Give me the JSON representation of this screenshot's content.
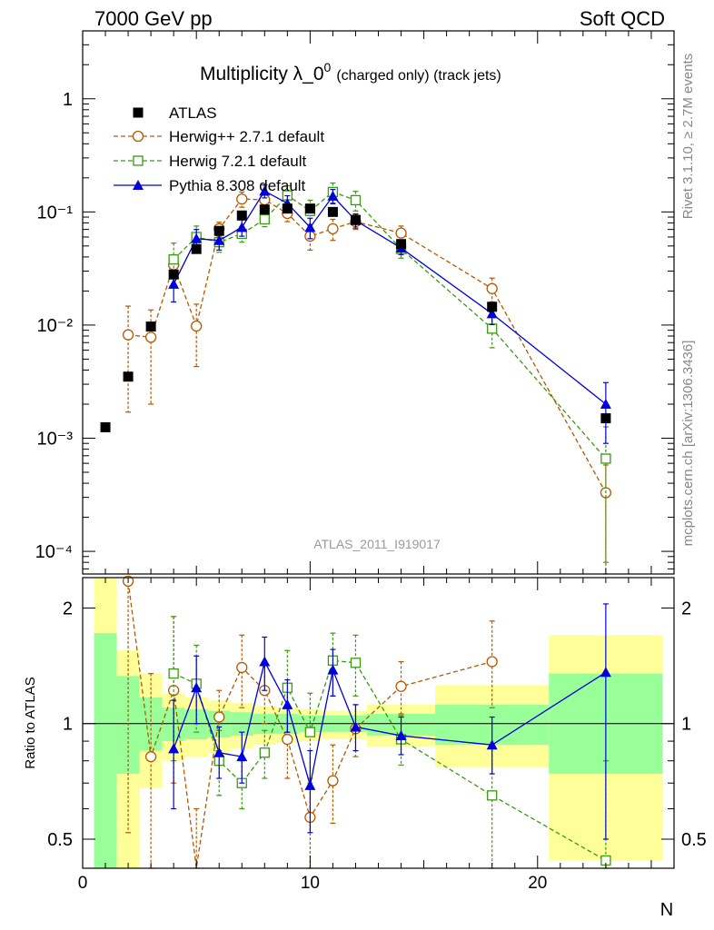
{
  "header": {
    "left": "7000 GeV pp",
    "right": "Soft QCD"
  },
  "side_labels": {
    "top": "Rivet 3.1.10, ≥ 2.7M events",
    "bottom": "mcplots.cern.ch [arXiv:1306.3436]"
  },
  "chart_data": {
    "type": "scatter",
    "title_main": "Multiplicity λ_0",
    "title_sup": "0",
    "title_small": "(charged only) (track jets)",
    "watermark": "ATLAS_2011_I919017",
    "xlabel": "N",
    "ylabel_ratio": "Ratio to ATLAS",
    "x_ticks": [
      "0",
      "10",
      "20"
    ],
    "y_ticks_main": [
      "1",
      "10⁻¹",
      "10⁻²",
      "10⁻³",
      "10⁻⁴"
    ],
    "y_ticks_ratio": [
      "2",
      "1",
      "0.5"
    ],
    "xlim": [
      0,
      26
    ],
    "ylim_main_log10": [
      -4.2,
      0.6
    ],
    "ylim_ratio": [
      0.42,
      2.4
    ],
    "legend_position": "top-left",
    "series": [
      {
        "name": "ATLAS",
        "color": "#000000",
        "marker": "square-filled",
        "x": [
          1,
          2,
          3,
          4,
          5,
          6,
          7,
          8,
          9,
          10,
          11,
          12,
          14,
          18,
          23
        ],
        "y": [
          0.00125,
          0.0035,
          0.0097,
          0.028,
          0.047,
          0.068,
          0.093,
          0.105,
          0.107,
          0.107,
          0.1,
          0.085,
          0.052,
          0.0145,
          0.0015
        ]
      },
      {
        "name": "Herwig++ 2.7.1 default",
        "color": "#b35900",
        "marker": "circle-open",
        "dash": "5,3",
        "x": [
          2,
          3,
          4,
          5,
          6,
          7,
          8,
          9,
          10,
          11,
          12,
          14,
          18,
          23
        ],
        "y": [
          0.0082,
          0.0078,
          0.034,
          0.0098,
          0.071,
          0.13,
          0.128,
          0.097,
          0.061,
          0.071,
          0.082,
          0.065,
          0.021,
          0.00033
        ],
        "yerr": [
          0.0065,
          0.0058,
          0.006,
          0.0055,
          0.01,
          0.02,
          0.02,
          0.015,
          0.015,
          0.015,
          0.012,
          0.01,
          0.005,
          0.00025
        ]
      },
      {
        "name": "Herwig 7.2.1 default",
        "color": "#3a9a10",
        "marker": "square-open",
        "dash": "5,3",
        "x": [
          4,
          5,
          6,
          7,
          8,
          9,
          10,
          11,
          12,
          14,
          18,
          23
        ],
        "y": [
          0.038,
          0.06,
          0.054,
          0.064,
          0.086,
          0.14,
          0.102,
          0.15,
          0.127,
          0.047,
          0.0093,
          0.00066
        ],
        "yerr": [
          0.015,
          0.015,
          0.01,
          0.01,
          0.012,
          0.03,
          0.025,
          0.03,
          0.025,
          0.008,
          0.003,
          0.0006
        ]
      },
      {
        "name": "Pythia 8.308 default",
        "color": "#0000dd",
        "marker": "triangle-filled",
        "x": [
          4,
          5,
          6,
          7,
          8,
          9,
          10,
          11,
          12,
          14,
          18,
          23
        ],
        "y": [
          0.023,
          0.058,
          0.056,
          0.073,
          0.153,
          0.119,
          0.073,
          0.138,
          0.084,
          0.048,
          0.0126,
          0.002
        ],
        "yerr": [
          0.007,
          0.012,
          0.01,
          0.012,
          0.02,
          0.02,
          0.015,
          0.02,
          0.012,
          0.006,
          0.0025,
          0.0011
        ]
      }
    ],
    "ratio_series": [
      {
        "name": "Herwig++ 2.7.1 default",
        "x": [
          2,
          3,
          4,
          5,
          6,
          7,
          8,
          9,
          10,
          11,
          12,
          14,
          18
        ],
        "y": [
          2.35,
          0.82,
          1.22,
          0.2,
          1.04,
          1.4,
          1.22,
          0.91,
          0.57,
          0.71,
          0.97,
          1.25,
          1.45
        ],
        "ylo": [
          0.52,
          0.3,
          0.7,
          0.1,
          0.85,
          1.1,
          1.0,
          0.72,
          0.4,
          0.55,
          0.82,
          1.06,
          1.1
        ],
        "yhi": [
          2.4,
          1.35,
          1.9,
          0.6,
          1.22,
          1.7,
          1.45,
          1.1,
          0.72,
          0.88,
          1.12,
          1.45,
          1.85
        ]
      },
      {
        "name": "Herwig 7.2.1 default",
        "x": [
          4,
          5,
          6,
          7,
          8,
          9,
          10,
          11,
          12,
          14,
          18,
          23
        ],
        "y": [
          1.35,
          1.27,
          0.8,
          0.7,
          0.84,
          1.24,
          0.95,
          1.46,
          1.44,
          0.91,
          0.65,
          0.44
        ],
        "ylo": [
          0.8,
          0.95,
          0.65,
          0.6,
          0.72,
          0.95,
          0.7,
          1.18,
          1.18,
          0.78,
          0.42,
          0.1
        ],
        "yhi": [
          1.9,
          1.6,
          0.96,
          0.8,
          0.96,
          1.55,
          1.2,
          1.72,
          1.7,
          1.05,
          0.88,
          0.8
        ]
      },
      {
        "name": "Pythia 8.308 default",
        "x": [
          4,
          5,
          6,
          7,
          8,
          9,
          10,
          11,
          12,
          14,
          18,
          23
        ],
        "y": [
          0.86,
          1.24,
          0.84,
          0.82,
          1.45,
          1.12,
          0.69,
          1.38,
          0.98,
          0.93,
          0.88,
          1.36
        ],
        "ylo": [
          0.6,
          1.0,
          0.72,
          0.7,
          1.22,
          0.95,
          0.52,
          1.18,
          0.85,
          0.83,
          0.74,
          0.5
        ],
        "yhi": [
          1.15,
          1.5,
          0.98,
          0.95,
          1.68,
          1.3,
          0.85,
          1.56,
          1.12,
          1.04,
          1.04,
          2.05
        ]
      }
    ],
    "ratio_bands": [
      {
        "xlo": 0.5,
        "xhi": 1.5,
        "g_lo": 0.33,
        "g_hi": 1.72,
        "y_lo": 0.3,
        "y_hi": 2.4
      },
      {
        "xlo": 1.5,
        "xhi": 2.5,
        "g_lo": 0.74,
        "g_hi": 1.33,
        "y_lo": 0.42,
        "y_hi": 1.55
      },
      {
        "xlo": 2.5,
        "xhi": 3.5,
        "g_lo": 0.85,
        "g_hi": 1.17,
        "y_lo": 0.68,
        "y_hi": 1.35
      },
      {
        "xlo": 3.5,
        "xhi": 4.5,
        "g_lo": 0.9,
        "g_hi": 1.1,
        "y_lo": 0.8,
        "y_hi": 1.2
      },
      {
        "xlo": 4.5,
        "xhi": 5.5,
        "g_lo": 0.91,
        "g_hi": 1.09,
        "y_lo": 0.82,
        "y_hi": 1.17
      },
      {
        "xlo": 5.5,
        "xhi": 6.5,
        "g_lo": 0.92,
        "g_hi": 1.08,
        "y_lo": 0.84,
        "y_hi": 1.15
      },
      {
        "xlo": 6.5,
        "xhi": 7.5,
        "g_lo": 0.93,
        "g_hi": 1.07,
        "y_lo": 0.86,
        "y_hi": 1.13
      },
      {
        "xlo": 7.5,
        "xhi": 8.5,
        "g_lo": 0.94,
        "g_hi": 1.06,
        "y_lo": 0.88,
        "y_hi": 1.11
      },
      {
        "xlo": 8.5,
        "xhi": 9.5,
        "g_lo": 0.94,
        "g_hi": 1.06,
        "y_lo": 0.89,
        "y_hi": 1.1
      },
      {
        "xlo": 9.5,
        "xhi": 10.5,
        "g_lo": 0.95,
        "g_hi": 1.05,
        "y_lo": 0.9,
        "y_hi": 1.09
      },
      {
        "xlo": 10.5,
        "xhi": 11.5,
        "g_lo": 0.95,
        "g_hi": 1.05,
        "y_lo": 0.91,
        "y_hi": 1.08
      },
      {
        "xlo": 11.5,
        "xhi": 12.5,
        "g_lo": 0.95,
        "g_hi": 1.05,
        "y_lo": 0.91,
        "y_hi": 1.08
      },
      {
        "xlo": 12.5,
        "xhi": 15.5,
        "g_lo": 0.93,
        "g_hi": 1.06,
        "y_lo": 0.87,
        "y_hi": 1.12
      },
      {
        "xlo": 15.5,
        "xhi": 20.5,
        "g_lo": 0.88,
        "g_hi": 1.12,
        "y_lo": 0.77,
        "y_hi": 1.26
      },
      {
        "xlo": 20.5,
        "xhi": 25.5,
        "g_lo": 0.74,
        "g_hi": 1.35,
        "y_lo": 0.44,
        "y_hi": 1.7
      }
    ]
  }
}
